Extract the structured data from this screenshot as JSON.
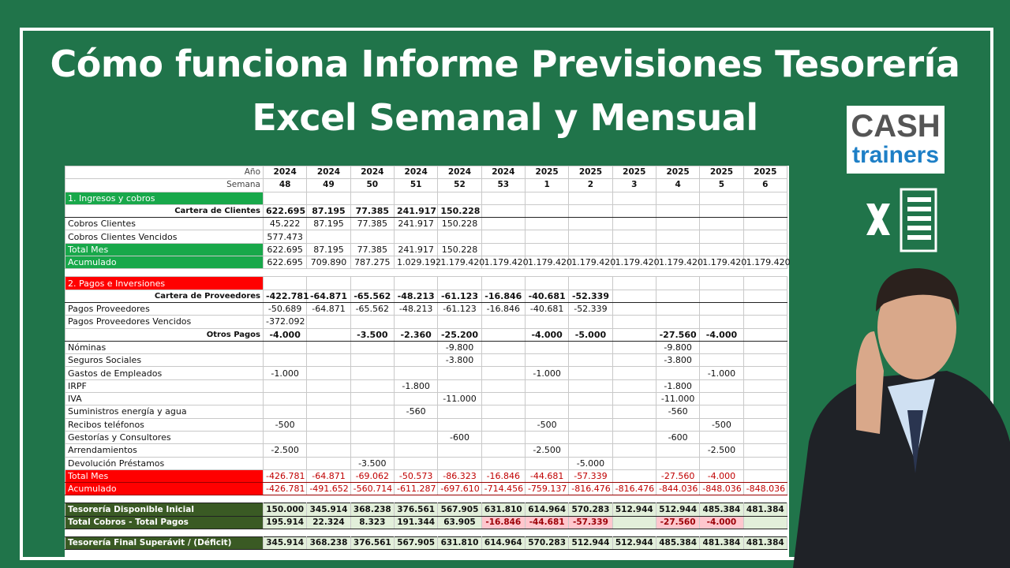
{
  "title_lines": [
    "Cómo funciona Informe Previsiones Tesorería",
    "Excel Semanal y Mensual"
  ],
  "logo": {
    "line1": "CASH",
    "line2": "trainers"
  },
  "table": {
    "header_rows": [
      {
        "label": "Año",
        "cells": [
          "2024",
          "2024",
          "2024",
          "2024",
          "2024",
          "2024",
          "2025",
          "2025",
          "2025",
          "2025",
          "2025",
          "2025"
        ]
      },
      {
        "label": "Semana",
        "cells": [
          "48",
          "49",
          "50",
          "51",
          "52",
          "53",
          "1",
          "2",
          "3",
          "4",
          "5",
          "6"
        ]
      }
    ],
    "rows": [
      {
        "label": "1. Ingresos y cobros",
        "cells": [
          null,
          null,
          null,
          null,
          null,
          null,
          null,
          null,
          null,
          null,
          null,
          null
        ]
      },
      {
        "label": "Cartera de Clientes",
        "cells": [
          "622.695",
          "87.195",
          "77.385",
          "241.917",
          "150.228",
          null,
          null,
          null,
          null,
          null,
          null,
          null
        ]
      },
      {
        "label": "Cobros Clientes",
        "cells": [
          "45.222",
          "87.195",
          "77.385",
          "241.917",
          "150.228",
          null,
          null,
          null,
          null,
          null,
          null,
          null
        ]
      },
      {
        "label": "Cobros Clientes Vencidos",
        "cells": [
          "577.473",
          null,
          null,
          null,
          null,
          null,
          null,
          null,
          null,
          null,
          null,
          null
        ]
      },
      {
        "label": "Total Mes",
        "cells": [
          "622.695",
          "87.195",
          "77.385",
          "241.917",
          "150.228",
          null,
          null,
          null,
          null,
          null,
          null,
          null
        ]
      },
      {
        "label": "Acumulado",
        "cells": [
          "622.695",
          "709.890",
          "787.275",
          "1.029.192",
          "1.179.420",
          "1.179.420",
          "1.179.420",
          "1.179.420",
          "1.179.420",
          "1.179.420",
          "1.179.420",
          "1.179.420"
        ]
      },
      {
        "label": "2. Pagos e Inversiones",
        "cells": [
          null,
          null,
          null,
          null,
          null,
          null,
          null,
          null,
          null,
          null,
          null,
          null
        ]
      },
      {
        "label": "Cartera de Proveedores",
        "cells": [
          "-422.781",
          "-64.871",
          "-65.562",
          "-48.213",
          "-61.123",
          "-16.846",
          "-40.681",
          "-52.339",
          null,
          null,
          null,
          null
        ]
      },
      {
        "label": "Pagos Proveedores",
        "cells": [
          "-50.689",
          "-64.871",
          "-65.562",
          "-48.213",
          "-61.123",
          "-16.846",
          "-40.681",
          "-52.339",
          null,
          null,
          null,
          null
        ]
      },
      {
        "label": "Pagos Proveedores Vencidos",
        "cells": [
          "-372.092",
          null,
          null,
          null,
          null,
          null,
          null,
          null,
          null,
          null,
          null,
          null
        ]
      },
      {
        "label": "Otros Pagos",
        "cells": [
          "-4.000",
          null,
          "-3.500",
          "-2.360",
          "-25.200",
          null,
          "-4.000",
          "-5.000",
          null,
          "-27.560",
          "-4.000",
          null
        ]
      },
      {
        "label": "Nóminas",
        "cells": [
          null,
          null,
          null,
          null,
          "-9.800",
          null,
          null,
          null,
          null,
          "-9.800",
          null,
          null
        ]
      },
      {
        "label": "Seguros Sociales",
        "cells": [
          null,
          null,
          null,
          null,
          "-3.800",
          null,
          null,
          null,
          null,
          "-3.800",
          null,
          null
        ]
      },
      {
        "label": "Gastos de Empleados",
        "cells": [
          "-1.000",
          null,
          null,
          null,
          null,
          null,
          "-1.000",
          null,
          null,
          null,
          "-1.000",
          null
        ]
      },
      {
        "label": "IRPF",
        "cells": [
          null,
          null,
          null,
          "-1.800",
          null,
          null,
          null,
          null,
          null,
          "-1.800",
          null,
          null
        ]
      },
      {
        "label": "IVA",
        "cells": [
          null,
          null,
          null,
          null,
          "-11.000",
          null,
          null,
          null,
          null,
          "-11.000",
          null,
          null
        ]
      },
      {
        "label": "Suministros energía y agua",
        "cells": [
          null,
          null,
          null,
          "-560",
          null,
          null,
          null,
          null,
          null,
          "-560",
          null,
          null
        ]
      },
      {
        "label": "Recibos teléfonos",
        "cells": [
          "-500",
          null,
          null,
          null,
          null,
          null,
          "-500",
          null,
          null,
          null,
          "-500",
          null
        ]
      },
      {
        "label": "Gestorías y Consultores",
        "cells": [
          null,
          null,
          null,
          null,
          "-600",
          null,
          null,
          null,
          null,
          "-600",
          null,
          null
        ]
      },
      {
        "label": "Arrendamientos",
        "cells": [
          "-2.500",
          null,
          null,
          null,
          null,
          null,
          "-2.500",
          null,
          null,
          null,
          "-2.500",
          null
        ]
      },
      {
        "label": "Devolución Préstamos",
        "cells": [
          null,
          null,
          "-3.500",
          null,
          null,
          null,
          null,
          "-5.000",
          null,
          null,
          null,
          null
        ]
      },
      {
        "label": "Total Mes",
        "cells": [
          "-426.781",
          "-64.871",
          "-69.062",
          "-50.573",
          "-86.323",
          "-16.846",
          "-44.681",
          "-57.339",
          null,
          "-27.560",
          "-4.000",
          null
        ]
      },
      {
        "label": "Acumulado",
        "cells": [
          "-426.781",
          "-491.652",
          "-560.714",
          "-611.287",
          "-697.610",
          "-714.456",
          "-759.137",
          "-816.476",
          "-816.476",
          "-844.036",
          "-848.036",
          "-848.036"
        ]
      },
      {
        "label": "Tesorería Disponible Inicial",
        "cells": [
          "150.000",
          "345.914",
          "368.238",
          "376.561",
          "567.905",
          "631.810",
          "614.964",
          "570.283",
          "512.944",
          "512.944",
          "485.384",
          "481.384"
        ]
      },
      {
        "label": "Total Cobros - Total Pagos",
        "cells": [
          "195.914",
          "22.324",
          "8.323",
          "191.344",
          "63.905",
          "-16.846",
          "-44.681",
          "-57.339",
          null,
          "-27.560",
          "-4.000",
          null
        ]
      },
      {
        "label": "Tesorería Final Superávit / (Déficit)",
        "cells": [
          "345.914",
          "368.238",
          "376.561",
          "567.905",
          "631.810",
          "614.964",
          "570.283",
          "512.944",
          "512.944",
          "485.384",
          "481.384",
          "481.384"
        ]
      }
    ]
  }
}
